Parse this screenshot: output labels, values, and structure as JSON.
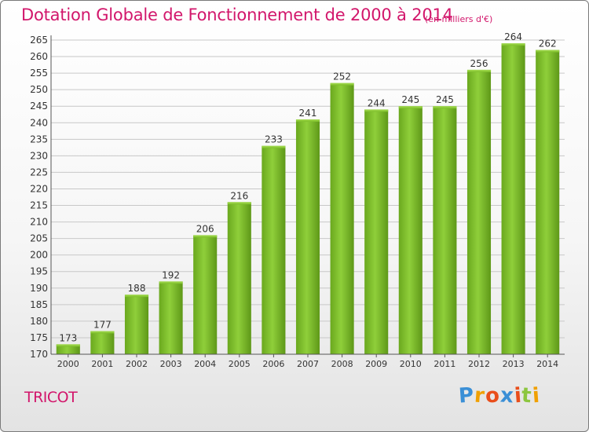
{
  "chart_data": {
    "type": "bar",
    "title": "Dotation Globale de Fonctionnement de 2000 à 2014",
    "subtitle": "(en milliers d'€)",
    "categories": [
      "2000",
      "2001",
      "2002",
      "2003",
      "2004",
      "2005",
      "2006",
      "2007",
      "2008",
      "2009",
      "2010",
      "2011",
      "2012",
      "2013",
      "2014"
    ],
    "values": [
      173,
      177,
      188,
      192,
      206,
      216,
      233,
      241,
      252,
      244,
      245,
      245,
      256,
      264,
      262
    ],
    "ylim": [
      170,
      265
    ],
    "yticks": [
      170,
      175,
      180,
      185,
      190,
      195,
      200,
      205,
      210,
      215,
      220,
      225,
      230,
      235,
      240,
      245,
      250,
      255,
      260,
      265
    ],
    "grid": true,
    "bar_color": "#7cbd2a"
  },
  "commune": "TRICOT",
  "logo": {
    "letters": [
      "P",
      "r",
      "o",
      "x",
      "i",
      "t",
      "i"
    ],
    "colors": [
      "#3a8fd6",
      "#f0a000",
      "#e94e1b",
      "#3a8fd6",
      "#e94e1b",
      "#8cc63f",
      "#f0a000"
    ]
  }
}
